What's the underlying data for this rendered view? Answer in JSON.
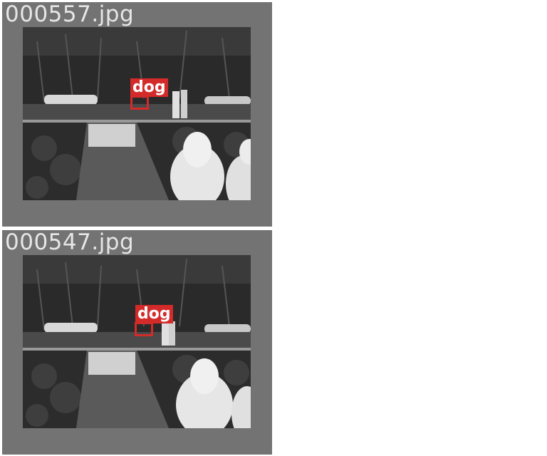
{
  "panels": [
    {
      "filename": "000557.jpg",
      "detection": {
        "label": "dog",
        "color": "#d42a2a"
      }
    },
    {
      "filename": "000547.jpg",
      "detection": {
        "label": "dog",
        "color": "#d42a2a"
      }
    }
  ],
  "colors": {
    "panel_background": "#737373",
    "filename_text": "#e6e6e6"
  }
}
